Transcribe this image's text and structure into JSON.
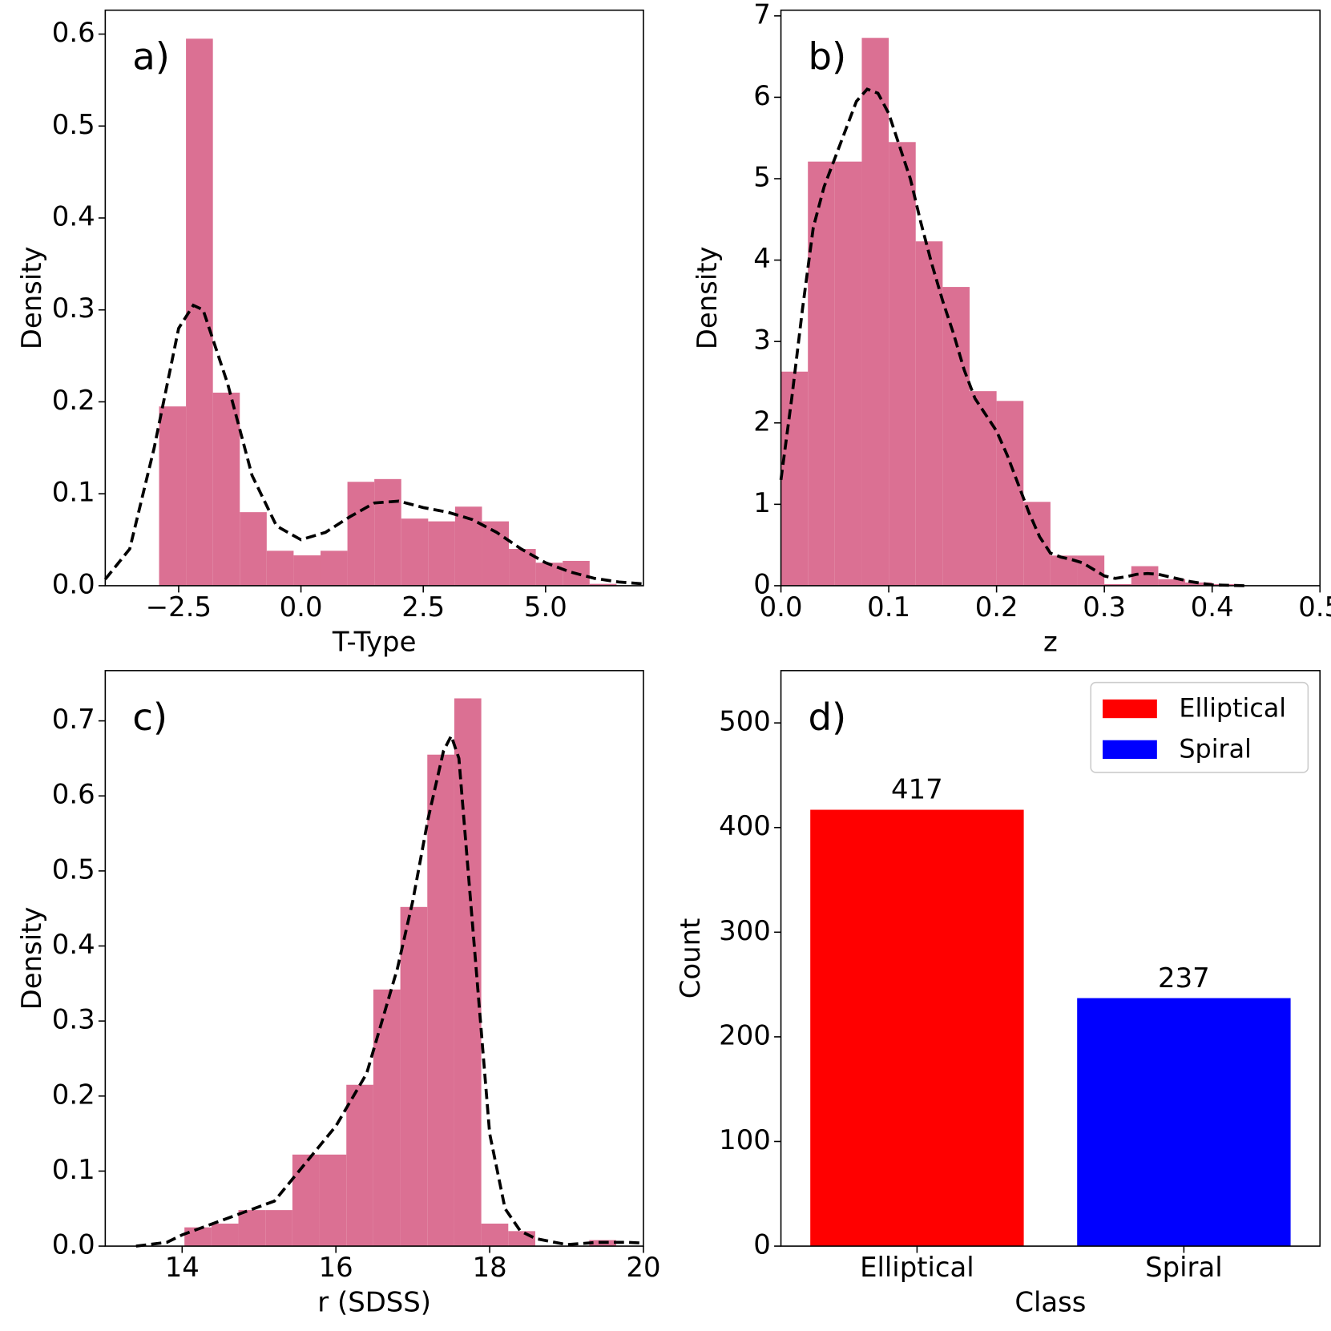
{
  "chart_data": [
    {
      "type": "histogram",
      "annotation": "a)",
      "xlabel": "T-Type",
      "ylabel": "Density",
      "color": "#db7093",
      "bins": [
        -2.9,
        -2.35,
        -1.8,
        -1.25,
        -0.7,
        -0.15,
        0.4,
        0.95,
        1.5,
        2.05,
        2.6,
        3.15,
        3.7,
        4.25,
        4.8,
        5.35,
        5.9,
        6.45
      ],
      "values": [
        0.195,
        0.595,
        0.21,
        0.08,
        0.038,
        0.033,
        0.038,
        0.113,
        0.116,
        0.073,
        0.07,
        0.086,
        0.07,
        0.04,
        0.025,
        0.027,
        0.002
      ],
      "kde": {
        "color": "#000000",
        "dashed": true,
        "x": [
          -4,
          -3.5,
          -3,
          -2.5,
          -2.2,
          -2,
          -1.5,
          -1,
          -0.5,
          0,
          0.5,
          1,
          1.5,
          2,
          2.5,
          3,
          3.5,
          4,
          4.5,
          5,
          5.5,
          6,
          6.5,
          7
        ],
        "y": [
          0.007,
          0.04,
          0.15,
          0.28,
          0.305,
          0.3,
          0.22,
          0.12,
          0.065,
          0.05,
          0.058,
          0.075,
          0.09,
          0.092,
          0.085,
          0.08,
          0.072,
          0.058,
          0.04,
          0.025,
          0.015,
          0.008,
          0.004,
          0.002
        ]
      },
      "xlim": [
        -4,
        7
      ],
      "xticks": [
        {
          "value": -2.5,
          "label": "−2.5"
        },
        {
          "value": 0,
          "label": "0.0"
        },
        2.5,
        {
          "value": 5,
          "label": "5.0"
        }
      ],
      "ylim": [
        0,
        0.626
      ],
      "yticks": [
        {
          "value": 0,
          "label": "0.0"
        },
        0.1,
        0.2,
        0.3,
        0.4,
        0.5,
        0.6
      ]
    },
    {
      "type": "histogram",
      "annotation": "b)",
      "xlabel": "z",
      "ylabel": "Density",
      "color": "#db7093",
      "bins": [
        0,
        0.025,
        0.05,
        0.075,
        0.1,
        0.125,
        0.15,
        0.175,
        0.2,
        0.225,
        0.25,
        0.275,
        0.3,
        0.325,
        0.35,
        0.375,
        0.4,
        0.425
      ],
      "values": [
        2.63,
        5.21,
        5.21,
        6.73,
        5.45,
        4.23,
        3.67,
        2.39,
        2.27,
        1.03,
        0.37,
        0.37,
        0.02,
        0.24,
        0.08,
        0.04,
        0.02
      ],
      "kde": {
        "color": "#000000",
        "dashed": true,
        "x": [
          0,
          0.01,
          0.02,
          0.03,
          0.04,
          0.05,
          0.06,
          0.07,
          0.08,
          0.09,
          0.1,
          0.11,
          0.12,
          0.13,
          0.14,
          0.15,
          0.16,
          0.17,
          0.18,
          0.19,
          0.2,
          0.21,
          0.22,
          0.23,
          0.24,
          0.25,
          0.26,
          0.27,
          0.28,
          0.29,
          0.3,
          0.31,
          0.32,
          0.33,
          0.34,
          0.35,
          0.36,
          0.37,
          0.38,
          0.39,
          0.4,
          0.43
        ],
        "y": [
          1.3,
          2.3,
          3.4,
          4.4,
          4.9,
          5.25,
          5.6,
          5.95,
          6.1,
          6.05,
          5.8,
          5.4,
          5.0,
          4.45,
          3.95,
          3.5,
          3.1,
          2.65,
          2.3,
          2.1,
          1.9,
          1.6,
          1.25,
          0.9,
          0.6,
          0.4,
          0.35,
          0.32,
          0.28,
          0.2,
          0.12,
          0.09,
          0.11,
          0.14,
          0.15,
          0.14,
          0.11,
          0.08,
          0.05,
          0.03,
          0.01,
          0
        ]
      },
      "xlim": [
        0,
        0.5
      ],
      "xticks": [
        {
          "value": 0,
          "label": "0.0"
        },
        0.1,
        0.2,
        0.3,
        0.4,
        0.5
      ],
      "ylim": [
        0,
        7.07
      ],
      "yticks": [
        0,
        1,
        2,
        3,
        4,
        5,
        6,
        7
      ]
    },
    {
      "type": "histogram",
      "annotation": "c)",
      "xlabel": "r (SDSS)",
      "ylabel": "Density",
      "color": "#db7093",
      "bins": [
        14.03,
        14.381,
        14.732,
        15.083,
        15.434,
        15.785,
        16.136,
        16.487,
        16.838,
        17.189,
        17.54,
        17.891,
        18.242,
        18.593,
        18.944,
        19.295,
        19.646
      ],
      "values": [
        0.025,
        0.03,
        0.048,
        0.048,
        0.122,
        0.122,
        0.215,
        0.342,
        0.452,
        0.655,
        0.73,
        0.03,
        0.02,
        0,
        0,
        0.008
      ],
      "kde": {
        "color": "#000000",
        "dashed": true,
        "x": [
          13.4,
          13.8,
          14,
          14.4,
          14.8,
          15.2,
          15.6,
          16,
          16.4,
          16.8,
          17,
          17.2,
          17.4,
          17.5,
          17.6,
          17.8,
          18,
          18.2,
          18.4,
          18.6,
          19,
          19.4,
          19.8,
          20
        ],
        "y": [
          0,
          0.005,
          0.015,
          0.03,
          0.045,
          0.06,
          0.11,
          0.16,
          0.23,
          0.37,
          0.46,
          0.57,
          0.66,
          0.68,
          0.65,
          0.4,
          0.15,
          0.05,
          0.02,
          0.01,
          0.002,
          0.005,
          0.005,
          0.004
        ]
      },
      "xlim": [
        13,
        20
      ],
      "xticks": [
        14,
        16,
        18,
        20
      ],
      "ylim": [
        0,
        0.767
      ],
      "yticks": [
        {
          "value": 0,
          "label": "0.0"
        },
        0.1,
        0.2,
        0.3,
        0.4,
        0.5,
        0.6,
        0.7
      ]
    },
    {
      "type": "bar",
      "annotation": "d)",
      "xlabel": "Class",
      "ylabel": "Count",
      "categories": [
        "Elliptical",
        "Spiral"
      ],
      "values": [
        417,
        237
      ],
      "colors": [
        "#ff0000",
        "#0000ff"
      ],
      "legend": "upper right",
      "ylim": [
        0,
        550
      ],
      "yticks": [
        0,
        100,
        200,
        300,
        400,
        500
      ]
    }
  ]
}
